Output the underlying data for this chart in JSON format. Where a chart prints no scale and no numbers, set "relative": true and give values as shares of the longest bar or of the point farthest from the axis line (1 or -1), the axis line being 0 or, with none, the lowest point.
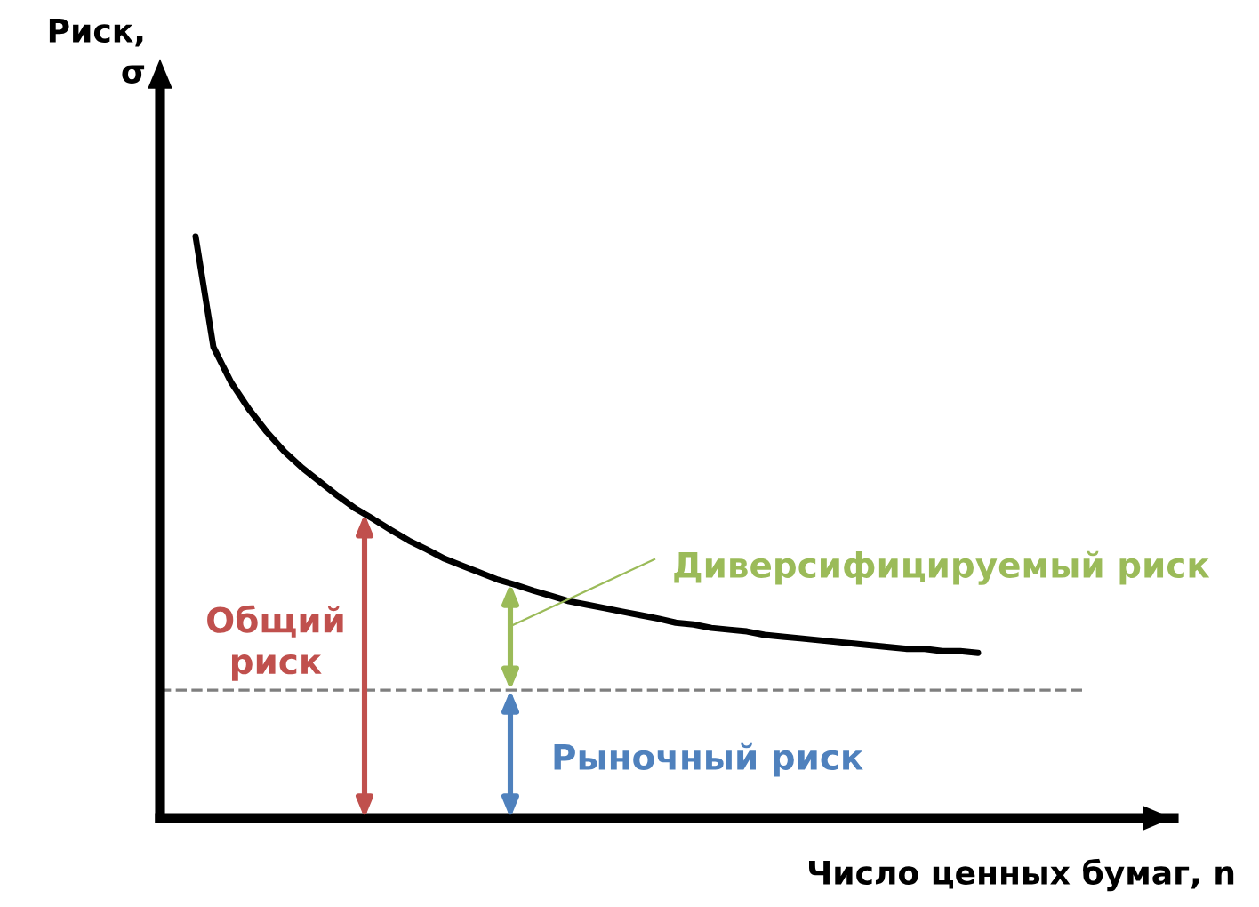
{
  "chart_data": {
    "type": "line",
    "relative": true,
    "xlabel": "Число ценных бумаг, n",
    "ylabel": "Риск,\nσ",
    "categories": [
      null,
      null,
      null,
      null,
      null,
      null,
      null,
      null,
      null,
      null,
      null,
      null,
      null,
      null,
      null,
      null,
      null,
      null,
      null,
      null,
      null,
      null,
      null,
      null,
      null,
      null,
      null,
      null,
      null,
      null,
      null,
      null,
      null,
      null,
      null,
      null,
      null,
      null,
      null,
      null,
      null,
      null,
      null,
      null,
      null
    ],
    "series": [
      {
        "color": "#000000",
        "values": [
          1.0,
          0.81,
          0.749,
          0.703,
          0.664,
          0.63,
          0.602,
          0.578,
          0.554,
          0.532,
          0.514,
          0.495,
          0.477,
          0.462,
          0.446,
          0.434,
          0.422,
          0.41,
          0.401,
          0.391,
          0.382,
          0.373,
          0.367,
          0.361,
          0.355,
          0.349,
          0.343,
          0.336,
          0.333,
          0.327,
          0.324,
          0.321,
          0.315,
          0.312,
          0.309,
          0.306,
          0.303,
          0.3,
          0.297,
          0.294,
          0.291,
          0.291,
          0.287,
          0.287,
          0.284
        ]
      }
    ],
    "ref_lines": [
      {
        "axis": "y",
        "value": 0.22,
        "color": "#7f7f7f",
        "line_style": "dashed"
      }
    ],
    "annotations": [
      "Общий\nриск",
      "Диверсифицируемый риск",
      "Рыночный риск"
    ],
    "tick_labels": false,
    "legend": false,
    "marker": "none",
    "line_style": "solid"
  }
}
